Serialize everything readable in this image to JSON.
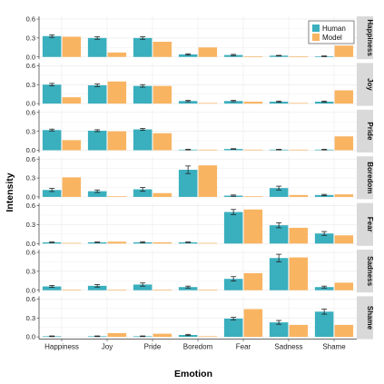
{
  "chart_data": {
    "type": "bar",
    "xlabel": "Emotion",
    "ylabel": "Intensity",
    "categories": [
      "Happiness",
      "Joy",
      "Pride",
      "Boredom",
      "Fear",
      "Sadness",
      "Shame"
    ],
    "ylim": [
      0,
      0.6
    ],
    "yticks": [
      "0.0",
      "0.3",
      "0.6"
    ],
    "legend": {
      "position": "top-right",
      "entries": [
        "Human",
        "Model"
      ]
    },
    "colors": {
      "Human": "#3AAFBE",
      "Model": "#F9B462",
      "strip": "#D9D9D9",
      "grid": "#EBEBEB"
    },
    "facets": [
      {
        "name": "Happiness",
        "series": [
          {
            "name": "Human",
            "values": [
              0.33,
              0.3,
              0.3,
              0.04,
              0.03,
              0.02,
              0.01
            ],
            "err": [
              0.02,
              0.02,
              0.02,
              0.01,
              0.01,
              0.005,
              0.005
            ]
          },
          {
            "name": "Model",
            "values": [
              0.32,
              0.07,
              0.24,
              0.15,
              0.01,
              0.01,
              0.18
            ]
          }
        ]
      },
      {
        "name": "Joy",
        "series": [
          {
            "name": "Human",
            "values": [
              0.3,
              0.29,
              0.28,
              0.04,
              0.04,
              0.03,
              0.03
            ],
            "err": [
              0.02,
              0.02,
              0.02,
              0.01,
              0.01,
              0.01,
              0.01
            ]
          },
          {
            "name": "Model",
            "values": [
              0.1,
              0.35,
              0.28,
              0.01,
              0.03,
              0.01,
              0.21
            ]
          }
        ]
      },
      {
        "name": "Pride",
        "series": [
          {
            "name": "Human",
            "values": [
              0.32,
              0.31,
              0.33,
              0.01,
              0.02,
              0.01,
              0.01
            ],
            "err": [
              0.015,
              0.015,
              0.015,
              0.005,
              0.005,
              0.005,
              0.005
            ]
          },
          {
            "name": "Model",
            "values": [
              0.16,
              0.3,
              0.27,
              0.01,
              0.01,
              0.01,
              0.22
            ]
          }
        ]
      },
      {
        "name": "Boredom",
        "series": [
          {
            "name": "Human",
            "values": [
              0.11,
              0.09,
              0.12,
              0.43,
              0.02,
              0.14,
              0.03
            ],
            "err": [
              0.025,
              0.02,
              0.03,
              0.06,
              0.01,
              0.03,
              0.01
            ]
          },
          {
            "name": "Model",
            "values": [
              0.31,
              0.01,
              0.06,
              0.5,
              0.01,
              0.03,
              0.04
            ]
          }
        ]
      },
      {
        "name": "Fear",
        "series": [
          {
            "name": "Human",
            "values": [
              0.02,
              0.02,
              0.02,
              0.02,
              0.5,
              0.29,
              0.16
            ],
            "err": [
              0.005,
              0.005,
              0.01,
              0.005,
              0.04,
              0.04,
              0.03
            ]
          },
          {
            "name": "Model",
            "values": [
              0.01,
              0.03,
              0.02,
              0.01,
              0.54,
              0.25,
              0.13
            ]
          }
        ]
      },
      {
        "name": "Sadness",
        "series": [
          {
            "name": "Human",
            "values": [
              0.06,
              0.07,
              0.09,
              0.05,
              0.18,
              0.51,
              0.05
            ],
            "err": [
              0.015,
              0.02,
              0.025,
              0.015,
              0.035,
              0.06,
              0.015
            ]
          },
          {
            "name": "Model",
            "values": [
              0.01,
              0.01,
              0.01,
              0.01,
              0.27,
              0.52,
              0.12
            ]
          }
        ]
      },
      {
        "name": "Shame",
        "series": [
          {
            "name": "Human",
            "values": [
              0.01,
              0.01,
              0.01,
              0.03,
              0.29,
              0.23,
              0.4
            ],
            "err": [
              0.005,
              0.005,
              0.005,
              0.01,
              0.02,
              0.03,
              0.04
            ]
          },
          {
            "name": "Model",
            "values": [
              0.0,
              0.06,
              0.05,
              0.01,
              0.44,
              0.19,
              0.19
            ]
          }
        ]
      }
    ]
  }
}
